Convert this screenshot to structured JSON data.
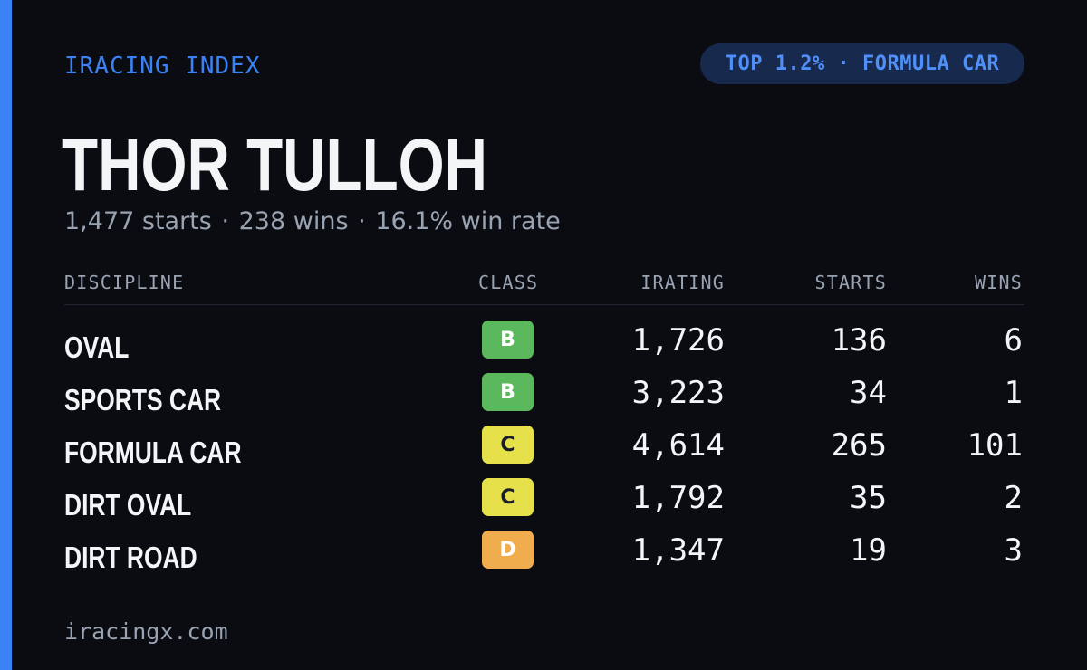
{
  "brand": "IRACING INDEX",
  "badge_text": "TOP 1.2% · FORMULA CAR",
  "driver_name": "THOR TULLOH",
  "summary": {
    "starts": "1,477 starts",
    "wins": "238 wins",
    "win_rate": "16.1% win rate",
    "separator": "·"
  },
  "table": {
    "headers": {
      "discipline": "DISCIPLINE",
      "class": "CLASS",
      "irating": "IRATING",
      "starts": "STARTS",
      "wins": "WINS"
    },
    "rows": [
      {
        "discipline": "OVAL",
        "class": "B",
        "irating": "1,726",
        "starts": "136",
        "wins": "6"
      },
      {
        "discipline": "SPORTS CAR",
        "class": "B",
        "irating": "3,223",
        "starts": "34",
        "wins": "1"
      },
      {
        "discipline": "FORMULA CAR",
        "class": "C",
        "irating": "4,614",
        "starts": "265",
        "wins": "101"
      },
      {
        "discipline": "DIRT OVAL",
        "class": "C",
        "irating": "1,792",
        "starts": "35",
        "wins": "2"
      },
      {
        "discipline": "DIRT ROAD",
        "class": "D",
        "irating": "1,347",
        "starts": "19",
        "wins": "3"
      }
    ]
  },
  "class_colors": {
    "B": "#5cb85c",
    "C": "#e6e04a",
    "D": "#f0ad4e"
  },
  "accent_color": "#3b82f6",
  "footer": "iracingx.com"
}
